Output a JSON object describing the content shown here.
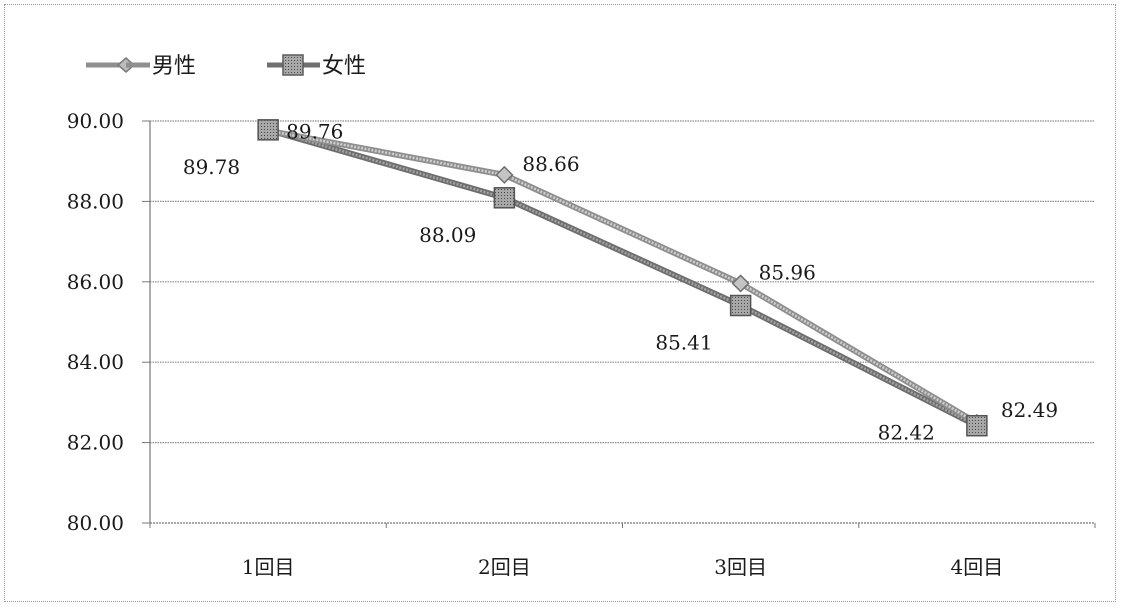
{
  "chart_data": {
    "type": "line",
    "categories": [
      "1回目",
      "2回目",
      "3回目",
      "4回目"
    ],
    "series": [
      {
        "name": "男性",
        "values": [
          89.76,
          88.66,
          85.96,
          82.49
        ],
        "marker": "diamond",
        "color": "#9b9b9b",
        "labels": [
          "89.76",
          "88.66",
          "85.96",
          "82.49"
        ]
      },
      {
        "name": "女性",
        "values": [
          89.78,
          88.09,
          85.41,
          82.42
        ],
        "marker": "square",
        "color": "#808080",
        "labels": [
          "89.78",
          "88.09",
          "85.41",
          "82.42"
        ]
      }
    ],
    "yticks": [
      "90.00",
      "88.00",
      "86.00",
      "84.00",
      "82.00",
      "80.00"
    ],
    "ylim": [
      80,
      90
    ],
    "grid": true,
    "legend_position": "top-left"
  }
}
